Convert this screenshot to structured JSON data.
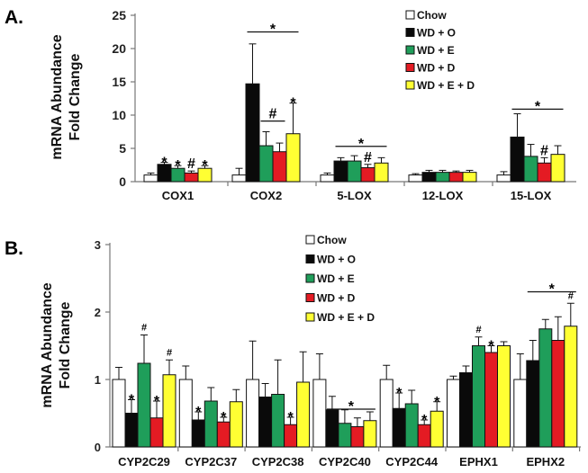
{
  "colors": {
    "Chow": "#ffffff",
    "WD + O": "#0a0a0a",
    "WD + E": "#1f9e5a",
    "WD + D": "#e41b23",
    "WD + E + D": "#ffff33"
  },
  "chart_data": [
    {
      "type": "bar",
      "panel_label": "A.",
      "ylabel_line1": "mRNA Abundance",
      "ylabel_line2": "Fold Change",
      "ylim": [
        0,
        25
      ],
      "yticks": [
        "0",
        "5",
        "10",
        "15",
        "20",
        "25"
      ],
      "categories": [
        "COX1",
        "COX2",
        "5-LOX",
        "12-LOX",
        "15-LOX"
      ],
      "legend": [
        "Chow",
        "WD + O",
        "WD + E",
        "WD + D",
        "WD + E + D"
      ],
      "series": [
        {
          "name": "Chow",
          "values": [
            1.0,
            1.0,
            1.0,
            1.0,
            1.0
          ],
          "errors": [
            0.3,
            1.0,
            0.3,
            0.2,
            0.5
          ]
        },
        {
          "name": "WD + O",
          "values": [
            2.6,
            14.7,
            3.1,
            1.4,
            6.7
          ],
          "errors": [
            0.3,
            6.0,
            0.5,
            0.3,
            3.5
          ]
        },
        {
          "name": "WD + E",
          "values": [
            2.0,
            5.4,
            3.1,
            1.4,
            3.8
          ],
          "errors": [
            0.4,
            2.1,
            0.8,
            0.3,
            1.8
          ]
        },
        {
          "name": "WD + D",
          "values": [
            1.3,
            4.5,
            2.1,
            1.4,
            2.8
          ],
          "errors": [
            0.3,
            1.3,
            0.5,
            0.2,
            0.8
          ]
        },
        {
          "name": "WD + E + D",
          "values": [
            2.0,
            7.2,
            2.8,
            1.4,
            4.1
          ],
          "errors": [
            0.4,
            4.6,
            0.8,
            0.3,
            1.3
          ]
        }
      ],
      "annotations": [
        {
          "text": "*",
          "cat": 0,
          "series": 1,
          "kind": "above"
        },
        {
          "text": "*",
          "cat": 0,
          "series": 2,
          "kind": "above"
        },
        {
          "text": "#",
          "cat": 0,
          "series": 3,
          "kind": "above"
        },
        {
          "text": "*",
          "cat": 0,
          "series": 4,
          "kind": "above"
        },
        {
          "text": "*",
          "cat": 1,
          "kind": "bracket",
          "from": 1,
          "to": 4,
          "y": 22.5
        },
        {
          "text": "#",
          "cat": 1,
          "kind": "bracket",
          "from": 2,
          "to": 3,
          "y": 9.1
        },
        {
          "text": "*",
          "cat": 1,
          "series": 4,
          "kind": "above"
        },
        {
          "text": "*",
          "cat": 2,
          "kind": "bracket",
          "from": 1,
          "to": 4,
          "y": 5.3
        },
        {
          "text": "#",
          "cat": 2,
          "series": 3,
          "kind": "above"
        },
        {
          "text": "*",
          "cat": 4,
          "kind": "bracket",
          "from": 1,
          "to": 4,
          "y": 10.9
        },
        {
          "text": "#",
          "cat": 4,
          "series": 3,
          "kind": "above"
        }
      ]
    },
    {
      "type": "bar",
      "panel_label": "B.",
      "ylabel_line1": "mRNA Abundance",
      "ylabel_line2": "Fold Change",
      "ylim": [
        0,
        3
      ],
      "yticks": [
        "0",
        "1",
        "2",
        "3"
      ],
      "categories": [
        "CYP2C29",
        "CYP2C37",
        "CYP2C38",
        "CYP2C40",
        "CYP2C44",
        "EPHX1",
        "EPHX2"
      ],
      "legend": [
        "Chow",
        "WD + O",
        "WD + E",
        "WD + D",
        "WD + E + D"
      ],
      "series": [
        {
          "name": "Chow",
          "values": [
            1.0,
            1.0,
            1.0,
            1.0,
            1.0,
            1.0,
            1.0
          ],
          "errors": [
            0.18,
            0.2,
            0.57,
            0.38,
            0.21,
            0.05,
            0.38
          ]
        },
        {
          "name": "WD + O",
          "values": [
            0.5,
            0.4,
            0.74,
            0.55,
            0.57,
            1.1,
            1.28
          ],
          "errors": [
            0.2,
            0.12,
            0.2,
            0.2,
            0.23,
            0.1,
            0.3
          ]
        },
        {
          "name": "WD + E",
          "values": [
            1.24,
            0.68,
            0.78,
            0.35,
            0.64,
            1.5,
            1.75
          ],
          "errors": [
            0.42,
            0.2,
            0.51,
            0.2,
            0.2,
            0.13,
            0.14
          ]
        },
        {
          "name": "WD + D",
          "values": [
            0.43,
            0.37,
            0.33,
            0.3,
            0.33,
            1.4,
            1.58
          ],
          "errors": [
            0.25,
            0.07,
            0.11,
            0.13,
            0.07,
            0.1,
            0.35
          ]
        },
        {
          "name": "WD + E + D",
          "values": [
            1.07,
            0.67,
            0.96,
            0.39,
            0.53,
            1.5,
            1.79
          ],
          "errors": [
            0.22,
            0.18,
            0.45,
            0.13,
            0.14,
            0.06,
            0.34
          ]
        }
      ],
      "annotations": [
        {
          "text": "*",
          "cat": 0,
          "series": 1,
          "kind": "above"
        },
        {
          "text": "#",
          "cat": 0,
          "series": 2,
          "kind": "above"
        },
        {
          "text": "*",
          "cat": 0,
          "series": 3,
          "kind": "above"
        },
        {
          "text": "#",
          "cat": 0,
          "series": 4,
          "kind": "above"
        },
        {
          "text": "*",
          "cat": 1,
          "series": 1,
          "kind": "above"
        },
        {
          "text": "*",
          "cat": 1,
          "series": 3,
          "kind": "above"
        },
        {
          "text": "*",
          "cat": 2,
          "series": 3,
          "kind": "above"
        },
        {
          "text": "*",
          "cat": 3,
          "kind": "bracket",
          "from": 1,
          "to": 4,
          "y": 0.56
        },
        {
          "text": "*",
          "cat": 4,
          "series": 1,
          "kind": "above"
        },
        {
          "text": "*",
          "cat": 4,
          "series": 3,
          "kind": "above"
        },
        {
          "text": "*",
          "cat": 4,
          "series": 4,
          "kind": "above"
        },
        {
          "text": "#",
          "cat": 5,
          "series": 2,
          "kind": "above"
        },
        {
          "text": "*",
          "cat": 5,
          "series": 3,
          "kind": "above"
        },
        {
          "text": "*",
          "cat": 6,
          "kind": "bracket",
          "from": 1,
          "to": 4,
          "y": 2.3
        },
        {
          "text": "#",
          "cat": 6,
          "series": 4,
          "kind": "above"
        }
      ]
    }
  ]
}
